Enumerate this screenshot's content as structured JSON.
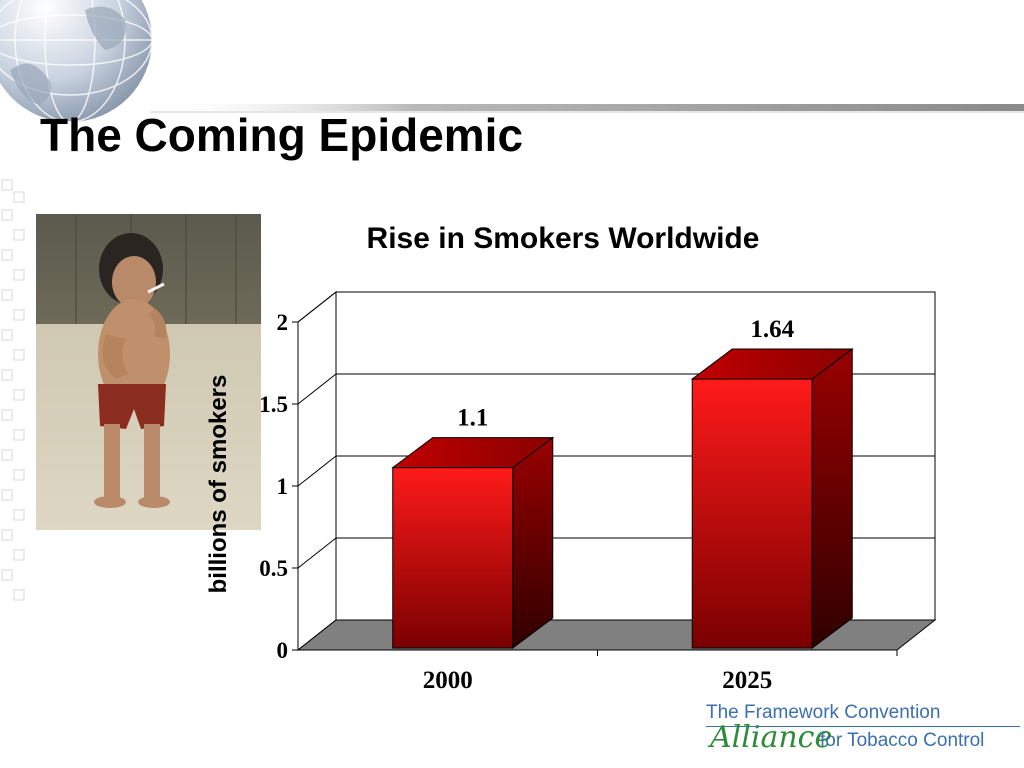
{
  "slide": {
    "title": "The Coming Epidemic"
  },
  "logo": {
    "line1": "The Framework Convention",
    "alliance": "Alliance",
    "line2": "for Tobacco Control",
    "colors": {
      "blue": "#3b6fb0",
      "green": "#2e8b3a"
    }
  },
  "chart_data": {
    "type": "bar",
    "title": "Rise in Smokers Worldwide",
    "ylabel": "billions of smokers",
    "xlabel": "",
    "categories": [
      "2000",
      "2025"
    ],
    "values": [
      1.1,
      1.64
    ],
    "data_labels": [
      "1.1",
      "1.64"
    ],
    "ylim": [
      0,
      2
    ],
    "yticks": [
      "0",
      "0.5",
      "1",
      "1.5",
      "2"
    ],
    "grid": true,
    "style": "3d",
    "bar_color": "#e00000",
    "floor_color": "#808080"
  }
}
